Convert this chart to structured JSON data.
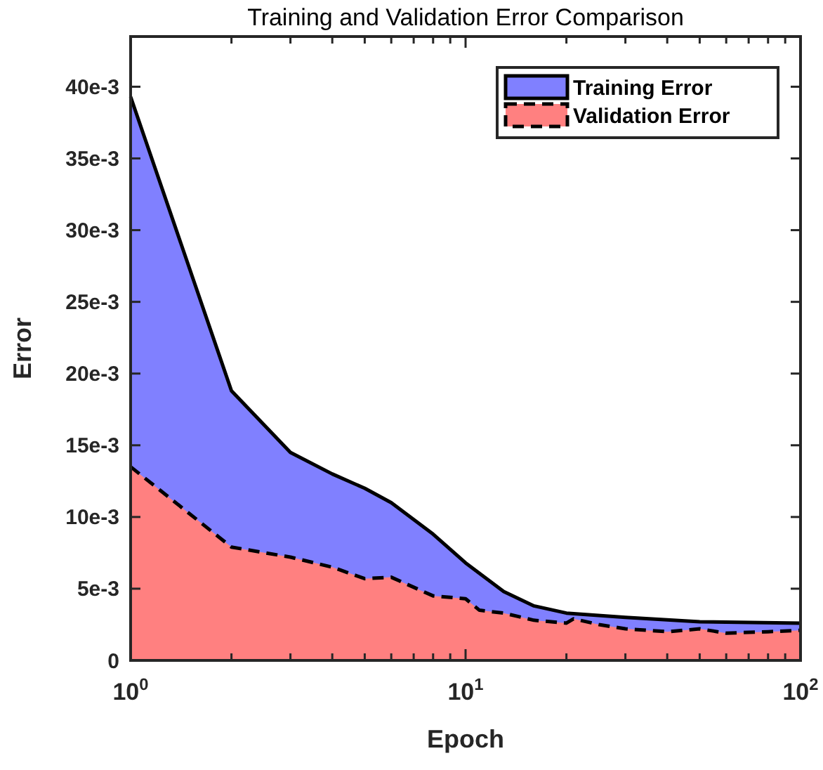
{
  "chart_data": {
    "type": "area",
    "title": "Training and Validation Error Comparison",
    "xlabel": "Epoch",
    "ylabel": "Error",
    "log": "x",
    "legend": "top right",
    "xlim": [
      1,
      100
    ],
    "ylim": [
      0,
      0.0435
    ],
    "xticks": [
      {
        "value": 1,
        "label": "10$^{0}$"
      },
      {
        "value": 2,
        "label": null
      },
      {
        "value": 3,
        "label": null
      },
      {
        "value": 4,
        "label": null
      },
      {
        "value": 5,
        "label": null
      },
      {
        "value": 6,
        "label": null
      },
      {
        "value": 7,
        "label": null
      },
      {
        "value": 8,
        "label": null
      },
      {
        "value": 9,
        "label": null
      },
      {
        "value": 10,
        "label": "10$^{1}$"
      },
      {
        "value": 20,
        "label": null
      },
      {
        "value": 30,
        "label": null
      },
      {
        "value": 40,
        "label": null
      },
      {
        "value": 50,
        "label": null
      },
      {
        "value": 60,
        "label": null
      },
      {
        "value": 70,
        "label": null
      },
      {
        "value": 80,
        "label": null
      },
      {
        "value": 90,
        "label": null
      },
      {
        "value": 100,
        "label": "10$^{2}$"
      }
    ],
    "yticks": [
      0,
      {
        "value": 0.005,
        "label": "5e-3"
      },
      {
        "value": 0.01,
        "label": "10e-3"
      },
      {
        "value": 0.015,
        "label": "15e-3"
      },
      {
        "value": 0.02,
        "label": "20e-3"
      },
      {
        "value": 0.025,
        "label": "25e-3"
      },
      {
        "value": 0.03,
        "label": "30e-3"
      },
      {
        "value": 0.035,
        "label": "35e-3"
      },
      {
        "value": 0.04,
        "label": "40e-3"
      }
    ],
    "series": [
      {
        "name": "Training Error",
        "color": "#8080ff",
        "line_style": "solid",
        "x": [
          1,
          2,
          3,
          4,
          5,
          6,
          8,
          10,
          13,
          16,
          20,
          30,
          50,
          100
        ],
        "values": [
          0.0393,
          0.0188,
          0.0145,
          0.013,
          0.012,
          0.011,
          0.0088,
          0.0068,
          0.0048,
          0.0038,
          0.0033,
          0.003,
          0.0027,
          0.0026
        ]
      },
      {
        "name": "Validation Error",
        "color": "#ff8080",
        "line_style": "dashed",
        "x": [
          1,
          2,
          3,
          4,
          5,
          6,
          7,
          8,
          10,
          11,
          13,
          16,
          20,
          21,
          25,
          30,
          40,
          50,
          60,
          80,
          100
        ],
        "values": [
          0.0135,
          0.0079,
          0.0072,
          0.0065,
          0.0057,
          0.0058,
          0.0051,
          0.0045,
          0.0043,
          0.0035,
          0.0033,
          0.0028,
          0.0026,
          0.0029,
          0.0025,
          0.0022,
          0.002,
          0.0022,
          0.0019,
          0.002,
          0.0021
        ]
      }
    ]
  }
}
